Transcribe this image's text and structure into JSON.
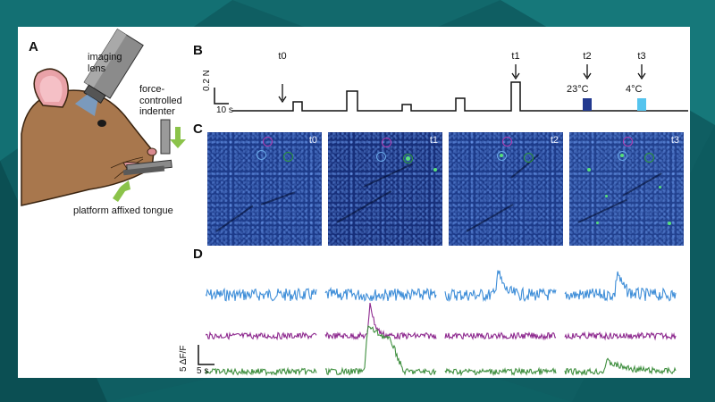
{
  "panels": {
    "a": "A",
    "b": "B",
    "c": "C",
    "d": "D"
  },
  "panel_a": {
    "imaging_lens_line1": "imaging",
    "imaging_lens_line2": "lens",
    "indenter_line1": "force-",
    "indenter_line2": "controlled",
    "indenter_line3": "indenter",
    "tongue_label": "platform affixed tongue"
  },
  "panel_b": {
    "time_markers": [
      "t0",
      "t1",
      "t2",
      "t3"
    ],
    "force_scale": "0.2 N",
    "time_scale": "10 s",
    "temp_warm": "23°C",
    "temp_cold": "4°C",
    "colors": {
      "warm": "#22398f",
      "cold": "#55c4ee"
    }
  },
  "panel_c": {
    "image_labels": [
      "t0",
      "t1",
      "t2",
      "t3"
    ],
    "roi_colors": {
      "blue": "#6aa9e8",
      "magenta": "#b23cb0",
      "green": "#2e9a3c"
    }
  },
  "panel_d": {
    "scale_dff": "5 ΔF/F",
    "scale_time": "5 s",
    "trace_colors": {
      "blue": "#3f8ed8",
      "magenta": "#8e2a8f",
      "green": "#3f8f3f"
    }
  }
}
